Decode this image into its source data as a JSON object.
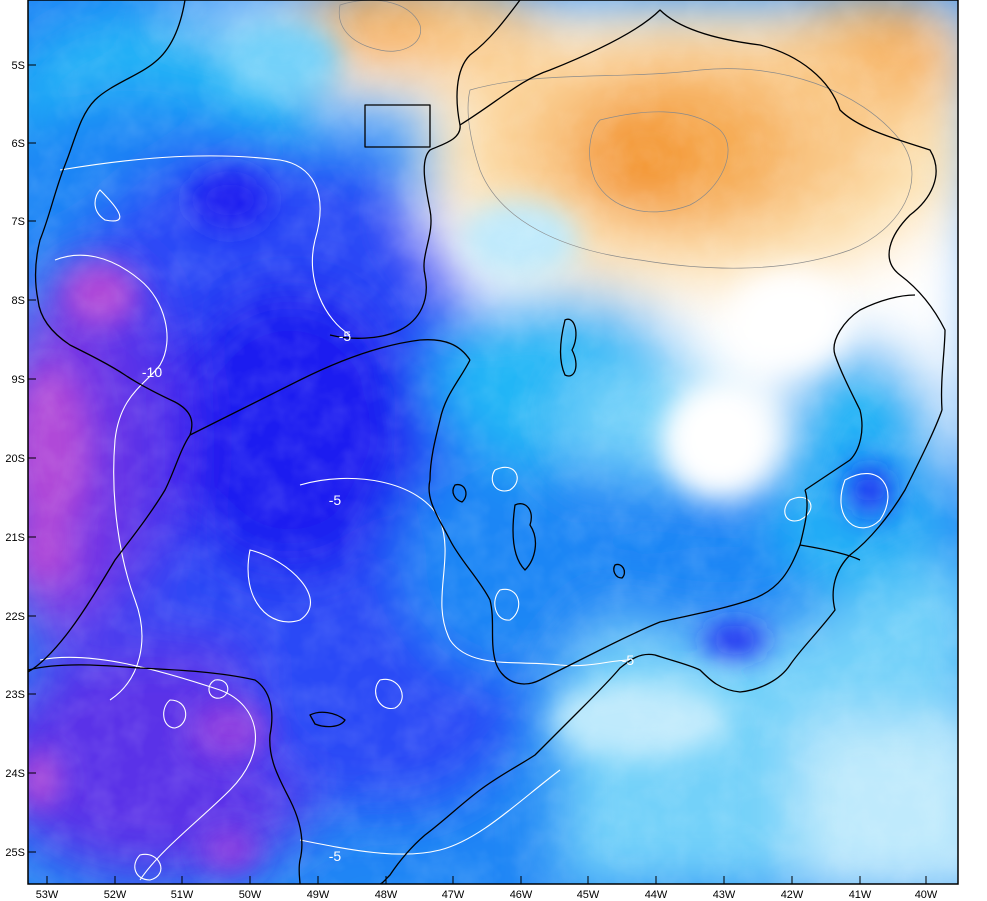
{
  "map": {
    "lon_labels": [
      "53W",
      "52W",
      "51W",
      "50W",
      "49W",
      "48W",
      "47W",
      "46W",
      "45W",
      "44W",
      "43W",
      "42W",
      "41W",
      "40W"
    ],
    "lat_labels": [
      "5S",
      "6S",
      "7S",
      "8S",
      "9S",
      "20S",
      "21S",
      "22S",
      "23S",
      "24S",
      "25S"
    ],
    "contour_labels": [
      "-5",
      "-10",
      "-5",
      "-5",
      "-5"
    ],
    "palette": {
      "violet": "#b04ad8",
      "purple": "#8b3be0",
      "indigo": "#5a32e8",
      "blue_deep": "#1a1cf0",
      "blue": "#2a4af6",
      "blue_mid": "#1f86f5",
      "cyan": "#22b6f6",
      "cyan_light": "#73d1f9",
      "cyan_pale": "#bfeafc",
      "white": "#ffffff",
      "cream": "#fde3b4",
      "tan": "#f9c887",
      "orange_light": "#f6ac55",
      "orange": "#f39225",
      "orange_deep": "#f07d0c"
    }
  }
}
